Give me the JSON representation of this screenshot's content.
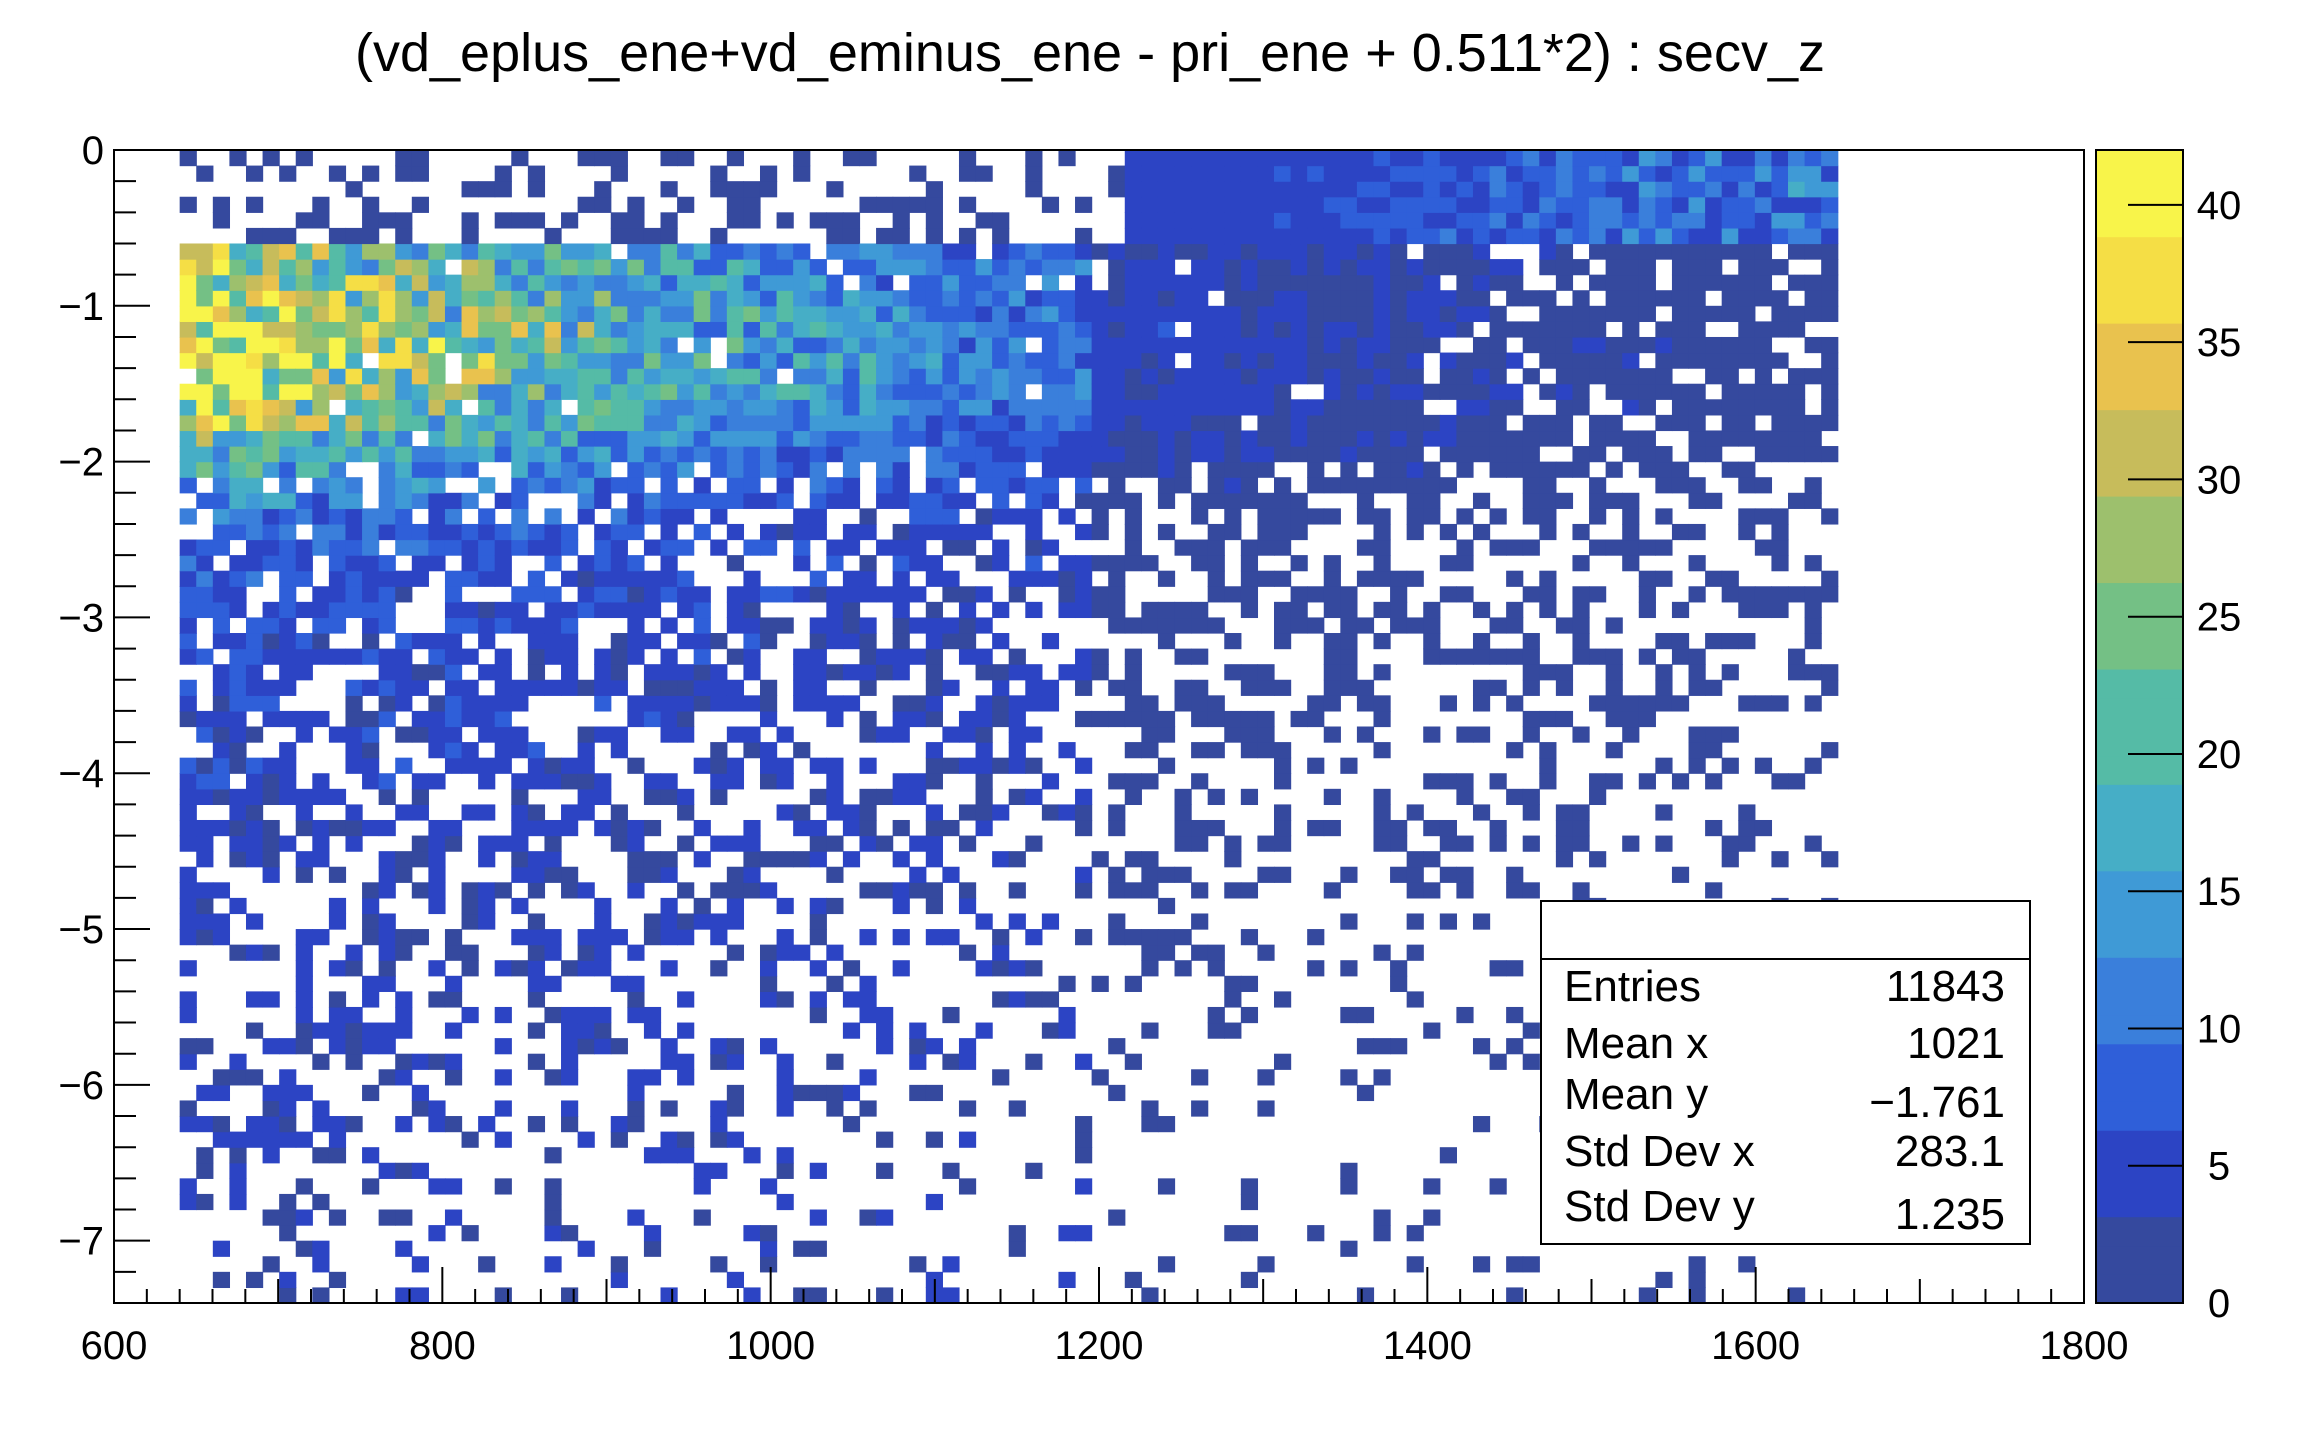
{
  "chart_data": {
    "type": "heatmap",
    "title": "(vd_eplus_ene+vd_eminus_ene - pri_ene + 0.511*2) : secv_z",
    "xlim": [
      600,
      1800
    ],
    "ylim": [
      -7.4,
      0
    ],
    "x_tick_labels": [
      "600",
      "800",
      "1000",
      "1200",
      "1400",
      "1600",
      "1800"
    ],
    "x_ticks": [
      600,
      800,
      1000,
      1200,
      1400,
      1600,
      1800
    ],
    "y_tick_labels": [
      "0",
      "−1",
      "−2",
      "−3",
      "−4",
      "−5",
      "−6",
      "−7"
    ],
    "y_ticks": [
      0,
      -1,
      -2,
      -3,
      -4,
      -5,
      -6,
      -7
    ],
    "colorbar": {
      "zlim": [
        0,
        42
      ],
      "tick_labels": [
        "0",
        "5",
        "10",
        "15",
        "20",
        "25",
        "30",
        "35",
        "40"
      ],
      "ticks": [
        0,
        5,
        10,
        15,
        20,
        25,
        30,
        35,
        40
      ],
      "palette": [
        "#35499e",
        "#2c44c4",
        "#2f5fd9",
        "#3a7fdb",
        "#3f9ad6",
        "#46aec6",
        "#55bba6",
        "#74c085",
        "#9dc06d",
        "#c7bc5b",
        "#e9c24e",
        "#f5de45",
        "#f8f44a"
      ]
    },
    "bins": {
      "x_range": [
        640,
        1650
      ],
      "nx": 100,
      "y_range": [
        -7.4,
        0
      ],
      "ny": 74,
      "description_regions": [
        {
          "x": [
            640,
            1650
          ],
          "y": [
            -4,
            -0.6
          ],
          "level": "dense"
        },
        {
          "x": [
            650,
            700
          ],
          "y": [
            -1.8,
            -1
          ],
          "max_value": 38
        }
      ]
    },
    "stats": {
      "entries": 11843,
      "mean_x": 1021,
      "mean_y": -1.761,
      "std_dev_x": 283.1,
      "std_dev_y": 1.235
    },
    "grid": false,
    "legend": "top-right stats box"
  },
  "stats_box": {
    "rows": [
      {
        "label": "Entries",
        "value": "11843"
      },
      {
        "label": "Mean x",
        "value": "1021"
      },
      {
        "label": "Mean y",
        "value": "−1.761"
      },
      {
        "label": "Std Dev x",
        "value": "283.1"
      },
      {
        "label": "Std Dev y",
        "value": "1.235"
      }
    ]
  }
}
